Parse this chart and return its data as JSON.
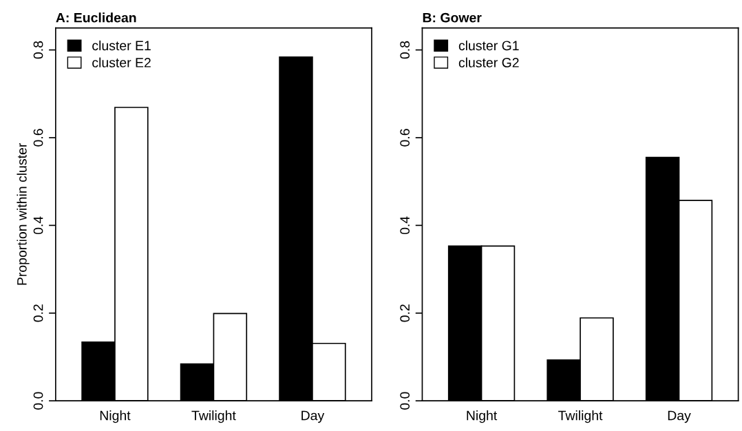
{
  "chart_data": [
    {
      "type": "bar",
      "title": "A: Euclidean",
      "ylabel": "Proportion within cluster",
      "categories": [
        "Night",
        "Twilight",
        "Day"
      ],
      "series": [
        {
          "name": "cluster E1",
          "color": "#000000",
          "values": [
            0.134,
            0.084,
            0.784
          ]
        },
        {
          "name": "cluster E2",
          "color": "#ffffff",
          "values": [
            0.669,
            0.199,
            0.131
          ]
        }
      ],
      "ylim": [
        0,
        0.85
      ],
      "yticks": [
        {
          "value": 0,
          "label": "0.0"
        },
        0.2,
        0.4,
        0.6,
        0.8
      ],
      "grid": false,
      "legend": "top left"
    },
    {
      "type": "bar",
      "title": "B: Gower",
      "categories": [
        "Night",
        "Twilight",
        "Day"
      ],
      "series": [
        {
          "name": "cluster G1",
          "color": "#000000",
          "values": [
            0.353,
            0.093,
            0.555
          ]
        },
        {
          "name": "cluster G2",
          "color": "#ffffff",
          "values": [
            0.353,
            0.189,
            0.457
          ]
        }
      ],
      "ylim": [
        0,
        0.85
      ],
      "yticks": [
        {
          "value": 0,
          "label": "0.0"
        },
        0.2,
        0.4,
        0.6,
        0.8
      ],
      "grid": false,
      "legend": "top left"
    }
  ]
}
